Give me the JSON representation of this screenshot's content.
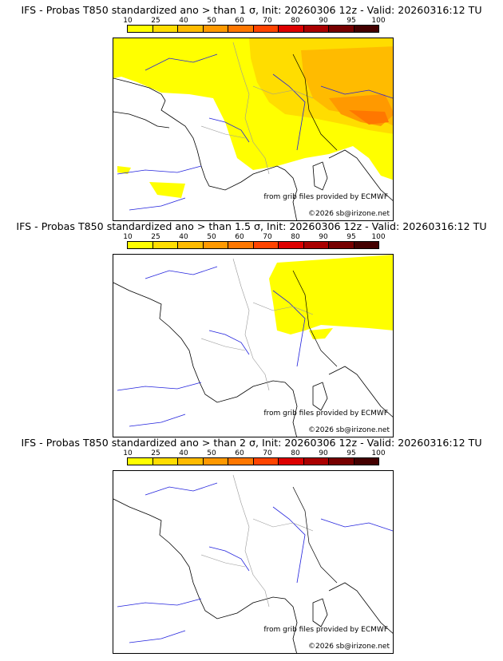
{
  "palette": [
    "#ffff00",
    "#ffdd00",
    "#ffbb00",
    "#ff9900",
    "#ff7700",
    "#ff4400",
    "#dd0000",
    "#aa0000",
    "#770000",
    "#440000"
  ],
  "scale_labels": [
    "10",
    "25",
    "40",
    "50",
    "60",
    "70",
    "80",
    "90",
    "95",
    "100"
  ],
  "colors": {
    "river": "#2222dd",
    "border": "#999999",
    "coast": "#000000"
  },
  "panels": [
    {
      "title": "IFS - Probas T850  standardized ano > than 1 σ, Init: 20260306 12z - Valid: 20260316:12 TU",
      "credit_grib": "from grib files provided by ECMWF",
      "credit_copy": "©2026 sb@irizone.net"
    },
    {
      "title": "IFS - Probas T850  standardized ano > than 1.5 σ, Init: 20260306 12z - Valid: 20260316:12 TU",
      "credit_grib": "from grib files provided by ECMWF",
      "credit_copy": "©2026 sb@irizone.net"
    },
    {
      "title": "IFS - Probas T850  standardized ano > than 2 σ, Init: 20260306 12z - Valid: 20260316:12 TU",
      "credit_grib": "from grib files provided by ECMWF",
      "credit_copy": "©2026 sb@irizone.net"
    }
  ]
}
